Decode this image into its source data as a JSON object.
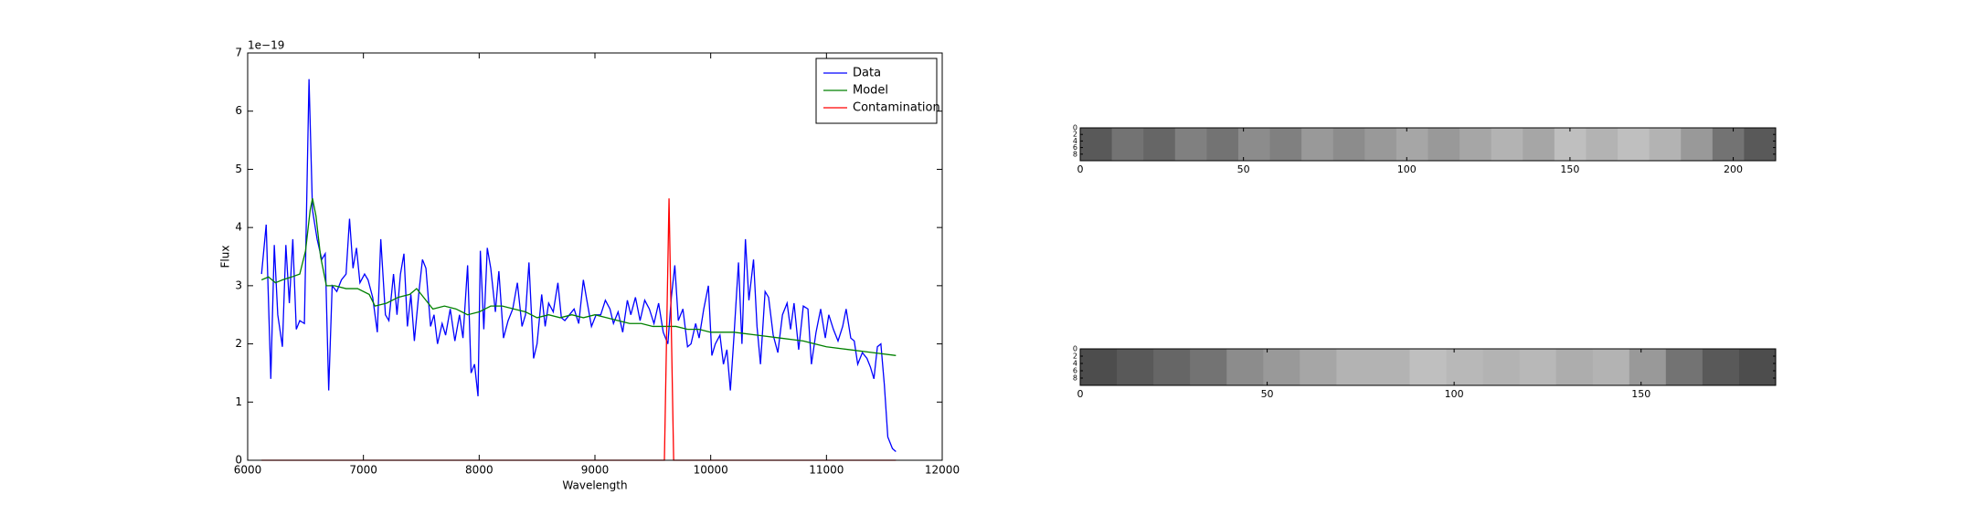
{
  "chart_data": [
    {
      "type": "line",
      "xlabel": "Wavelength",
      "ylabel": "Flux",
      "offset_label": "1e−19",
      "xlim": [
        6000,
        12000
      ],
      "xticks": [
        6000,
        7000,
        8000,
        9000,
        10000,
        11000,
        12000
      ],
      "ylim": [
        0,
        7
      ],
      "yticks": [
        0,
        1,
        2,
        3,
        4,
        5,
        6,
        7
      ],
      "legend": "upper right",
      "series": [
        {
          "name": "Data",
          "color": "#0000ff",
          "x": [
            6120,
            6160,
            6200,
            6230,
            6260,
            6300,
            6330,
            6360,
            6390,
            6420,
            6450,
            6490,
            6530,
            6560,
            6600,
            6640,
            6670,
            6700,
            6730,
            6770,
            6810,
            6850,
            6880,
            6910,
            6940,
            6970,
            7010,
            7040,
            7080,
            7120,
            7150,
            7190,
            7220,
            7260,
            7290,
            7320,
            7350,
            7380,
            7410,
            7440,
            7480,
            7510,
            7540,
            7580,
            7610,
            7640,
            7680,
            7710,
            7750,
            7790,
            7830,
            7860,
            7900,
            7930,
            7960,
            7990,
            8010,
            8040,
            8070,
            8100,
            8140,
            8170,
            8210,
            8250,
            8290,
            8330,
            8370,
            8400,
            8430,
            8470,
            8500,
            8540,
            8570,
            8600,
            8640,
            8680,
            8710,
            8740,
            8780,
            8820,
            8860,
            8900,
            8930,
            8970,
            9010,
            9050,
            9090,
            9130,
            9160,
            9200,
            9240,
            9280,
            9310,
            9350,
            9390,
            9430,
            9470,
            9510,
            9550,
            9590,
            9630,
            9660,
            9690,
            9720,
            9760,
            9800,
            9830,
            9870,
            9900,
            9940,
            9980,
            10010,
            10040,
            10080,
            10110,
            10140,
            10170,
            10200,
            10240,
            10270,
            10300,
            10330,
            10370,
            10400,
            10430,
            10470,
            10500,
            10540,
            10580,
            10620,
            10660,
            10690,
            10720,
            10760,
            10800,
            10840,
            10870,
            10910,
            10950,
            10990,
            11020,
            11060,
            11100,
            11140,
            11170,
            11210,
            11240,
            11270,
            11310,
            11350,
            11380,
            11410,
            11440,
            11470,
            11500,
            11530,
            11570,
            11600
          ],
          "values": [
            3.2,
            4.05,
            1.4,
            3.7,
            2.5,
            1.95,
            3.7,
            2.7,
            3.8,
            2.25,
            2.4,
            2.35,
            6.55,
            4.3,
            3.8,
            3.45,
            3.55,
            1.2,
            3.0,
            2.9,
            3.1,
            3.2,
            4.15,
            3.3,
            3.65,
            3.05,
            3.2,
            3.1,
            2.8,
            2.2,
            3.8,
            2.5,
            2.4,
            3.2,
            2.5,
            3.2,
            3.55,
            2.3,
            2.85,
            2.05,
            2.9,
            3.45,
            3.3,
            2.3,
            2.5,
            2.0,
            2.35,
            2.15,
            2.6,
            2.05,
            2.5,
            2.1,
            3.35,
            1.5,
            1.65,
            1.1,
            3.6,
            2.25,
            3.65,
            3.3,
            2.55,
            3.25,
            2.1,
            2.4,
            2.6,
            3.05,
            2.3,
            2.5,
            3.4,
            1.75,
            2.0,
            2.85,
            2.3,
            2.7,
            2.55,
            3.05,
            2.45,
            2.4,
            2.5,
            2.6,
            2.35,
            3.1,
            2.75,
            2.3,
            2.5,
            2.5,
            2.75,
            2.6,
            2.35,
            2.55,
            2.2,
            2.75,
            2.5,
            2.8,
            2.4,
            2.75,
            2.6,
            2.35,
            2.7,
            2.2,
            2.0,
            2.8,
            3.35,
            2.4,
            2.6,
            1.95,
            2.0,
            2.35,
            2.1,
            2.6,
            3.0,
            1.8,
            2.0,
            2.15,
            1.65,
            1.9,
            1.2,
            2.1,
            3.4,
            2.0,
            3.8,
            2.75,
            3.45,
            2.3,
            1.65,
            2.9,
            2.8,
            2.15,
            1.85,
            2.5,
            2.7,
            2.25,
            2.7,
            1.9,
            2.65,
            2.6,
            1.65,
            2.2,
            2.6,
            2.1,
            2.5,
            2.25,
            2.05,
            2.3,
            2.6,
            2.1,
            2.05,
            1.65,
            1.85,
            1.75,
            1.6,
            1.4,
            1.95,
            2.0,
            1.3,
            0.4,
            0.2,
            0.15
          ]
        },
        {
          "name": "Model",
          "color": "#008000",
          "x": [
            6120,
            6180,
            6240,
            6300,
            6380,
            6450,
            6500,
            6540,
            6560,
            6590,
            6630,
            6680,
            6750,
            6850,
            6950,
            7050,
            7100,
            7200,
            7300,
            7400,
            7460,
            7520,
            7600,
            7700,
            7800,
            7900,
            8000,
            8100,
            8200,
            8300,
            8400,
            8500,
            8600,
            8700,
            8800,
            8900,
            9000,
            9100,
            9200,
            9300,
            9400,
            9500,
            9600,
            9700,
            9800,
            9900,
            10000,
            10200,
            10400,
            10600,
            10800,
            11000,
            11200,
            11400,
            11600
          ],
          "values": [
            3.1,
            3.15,
            3.05,
            3.1,
            3.15,
            3.2,
            3.6,
            4.3,
            4.5,
            4.2,
            3.5,
            3.0,
            3.0,
            2.95,
            2.95,
            2.85,
            2.65,
            2.7,
            2.8,
            2.85,
            2.95,
            2.8,
            2.6,
            2.65,
            2.6,
            2.5,
            2.55,
            2.65,
            2.65,
            2.6,
            2.55,
            2.45,
            2.5,
            2.45,
            2.5,
            2.45,
            2.5,
            2.45,
            2.4,
            2.35,
            2.35,
            2.3,
            2.3,
            2.3,
            2.25,
            2.25,
            2.2,
            2.2,
            2.15,
            2.1,
            2.05,
            1.95,
            1.9,
            1.85,
            1.8
          ]
        },
        {
          "name": "Contamination",
          "color": "#ff0000",
          "x": [
            6120,
            9600,
            9640,
            9680,
            11600
          ],
          "values": [
            0,
            0,
            4.5,
            0,
            0
          ]
        }
      ]
    },
    {
      "type": "image",
      "xlim": [
        0,
        213
      ],
      "xticks": [
        0,
        50,
        100,
        150,
        200
      ],
      "ylim": [
        10,
        0
      ],
      "yticks": [
        0,
        2,
        4,
        6,
        8
      ],
      "brightness": [
        0.35,
        0.45,
        0.4,
        0.5,
        0.45,
        0.55,
        0.5,
        0.6,
        0.55,
        0.6,
        0.65,
        0.6,
        0.65,
        0.7,
        0.65,
        0.75,
        0.7,
        0.75,
        0.7,
        0.6,
        0.45,
        0.35
      ]
    },
    {
      "type": "image",
      "xlim": [
        0,
        186
      ],
      "xticks": [
        0,
        50,
        100,
        150
      ],
      "ylim": [
        10,
        0
      ],
      "yticks": [
        0,
        2,
        4,
        6,
        8
      ],
      "brightness": [
        0.3,
        0.35,
        0.4,
        0.45,
        0.55,
        0.6,
        0.65,
        0.7,
        0.7,
        0.75,
        0.72,
        0.7,
        0.72,
        0.68,
        0.7,
        0.6,
        0.45,
        0.35,
        0.3
      ]
    }
  ]
}
